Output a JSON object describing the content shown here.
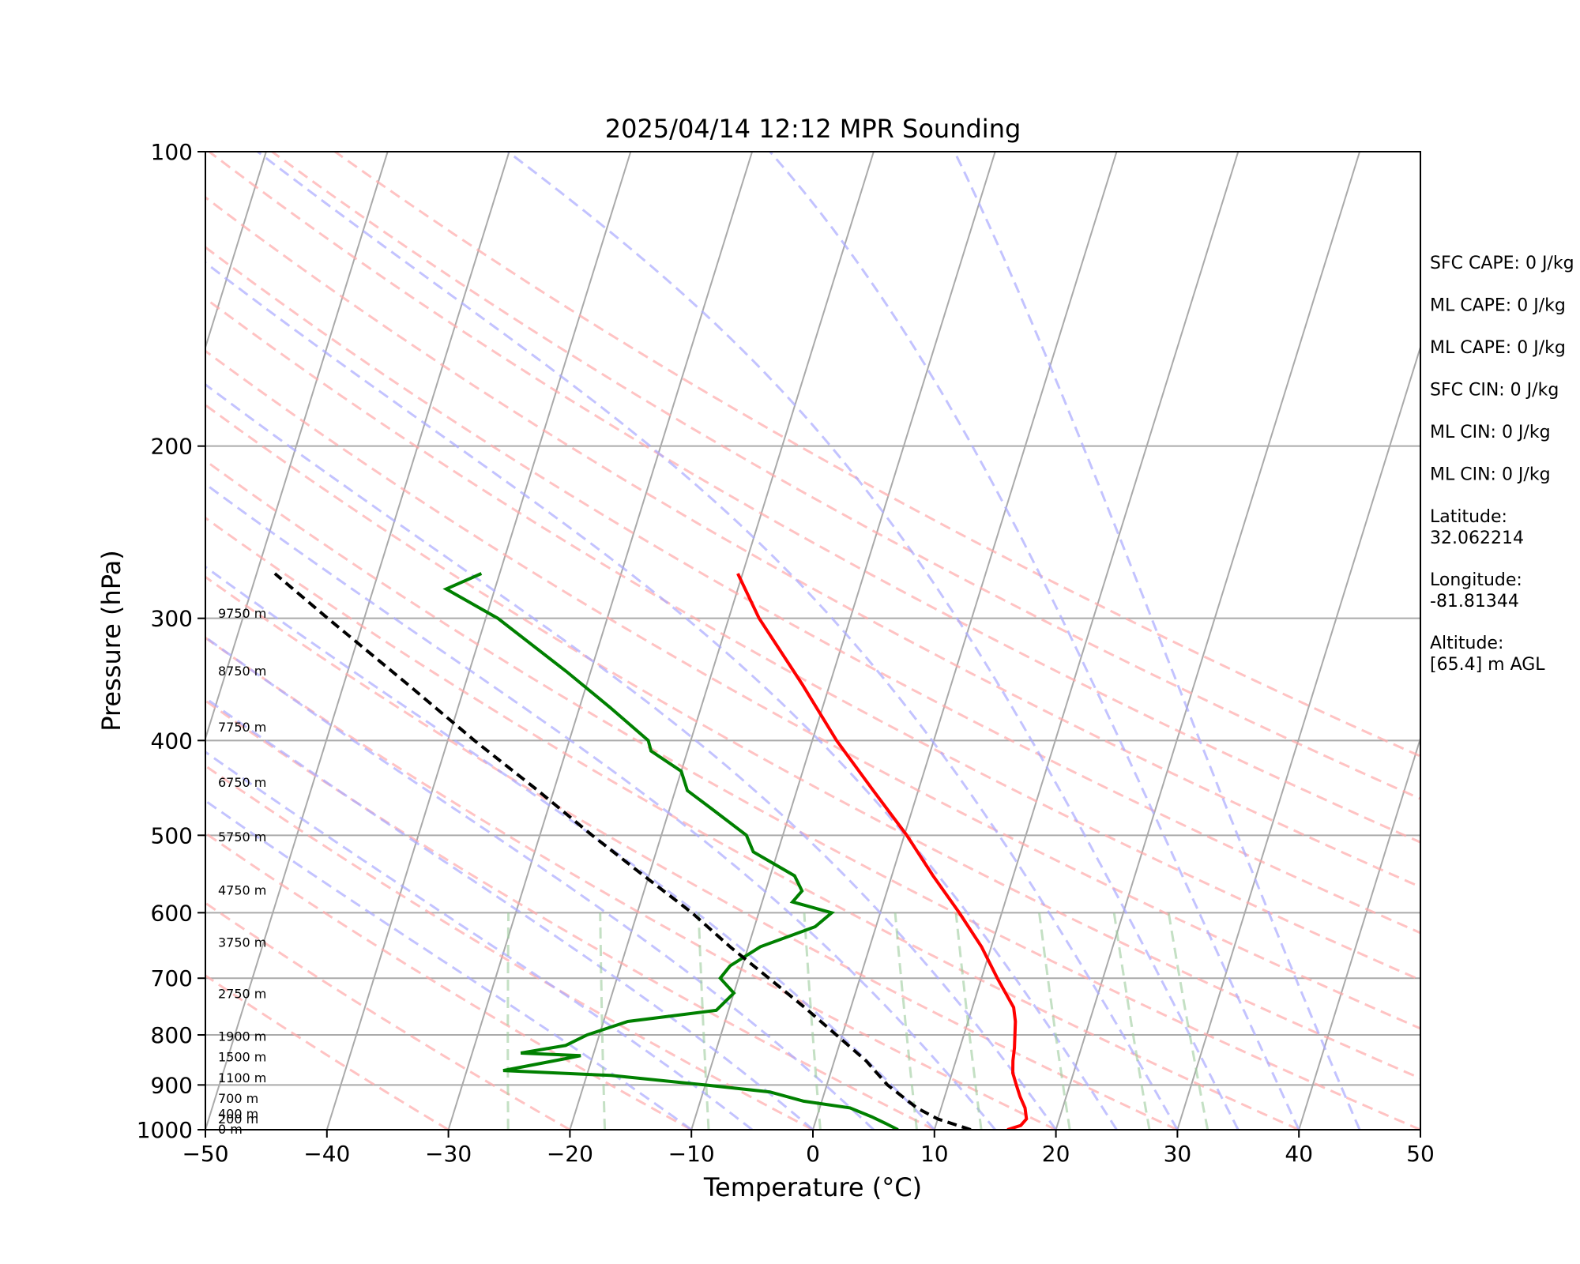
{
  "chart_data": {
    "type": "line",
    "title": "2025/04/14 12:12 MPR Sounding",
    "xlabel": "Temperature (°C)",
    "ylabel": "Pressure (hPa)",
    "xlim": [
      -50,
      50
    ],
    "ylim": [
      1000,
      100
    ],
    "y_scale": "log",
    "skew": "skew-T (isotherms slanted)",
    "x_ticks": [
      "−50",
      "−40",
      "−30",
      "−20",
      "−10",
      "0",
      "10",
      "20",
      "30",
      "40",
      "50"
    ],
    "y_ticks": [
      "100",
      "200",
      "300",
      "400",
      "500",
      "600",
      "700",
      "800",
      "900",
      "1000"
    ],
    "series": [
      {
        "role": "temperature",
        "color": "#ff0000",
        "points": [
          [
            1000,
            16.0
          ],
          [
            990,
            17.0
          ],
          [
            975,
            17.3
          ],
          [
            950,
            16.9
          ],
          [
            925,
            16.2
          ],
          [
            900,
            15.6
          ],
          [
            875,
            15.0
          ],
          [
            850,
            14.7
          ],
          [
            825,
            14.5
          ],
          [
            800,
            14.2
          ],
          [
            775,
            13.9
          ],
          [
            750,
            13.4
          ],
          [
            700,
            11.3
          ],
          [
            650,
            9.2
          ],
          [
            600,
            6.5
          ],
          [
            550,
            3.4
          ],
          [
            500,
            0.2
          ],
          [
            450,
            -3.7
          ],
          [
            400,
            -8.0
          ],
          [
            350,
            -12.3
          ],
          [
            300,
            -17.5
          ],
          [
            270,
            -20.4
          ]
        ]
      },
      {
        "role": "dewpoint",
        "color": "#008000",
        "points": [
          [
            1000,
            7.0
          ],
          [
            985,
            5.8
          ],
          [
            970,
            4.5
          ],
          [
            950,
            2.5
          ],
          [
            935,
            -1.5
          ],
          [
            915,
            -4.5
          ],
          [
            900,
            -10.0
          ],
          [
            880,
            -18.0
          ],
          [
            870,
            -27.0
          ],
          [
            860,
            -25.0
          ],
          [
            850,
            -23.0
          ],
          [
            840,
            -21.0
          ],
          [
            835,
            -26.0
          ],
          [
            820,
            -22.5
          ],
          [
            800,
            -21.0
          ],
          [
            775,
            -18.0
          ],
          [
            755,
            -11.0
          ],
          [
            725,
            -10.0
          ],
          [
            700,
            -11.5
          ],
          [
            680,
            -11.0
          ],
          [
            650,
            -9.0
          ],
          [
            620,
            -5.0
          ],
          [
            600,
            -4.0
          ],
          [
            585,
            -7.5
          ],
          [
            570,
            -7.0
          ],
          [
            550,
            -8.0
          ],
          [
            520,
            -12.0
          ],
          [
            500,
            -13.0
          ],
          [
            470,
            -16.5
          ],
          [
            450,
            -19.0
          ],
          [
            430,
            -20.0
          ],
          [
            410,
            -23.0
          ],
          [
            400,
            -23.5
          ],
          [
            370,
            -27.5
          ],
          [
            340,
            -32.0
          ],
          [
            300,
            -39.0
          ],
          [
            280,
            -44.0
          ],
          [
            270,
            -41.5
          ]
        ]
      },
      {
        "role": "parcel",
        "color": "#000000",
        "style": "dashed",
        "points": [
          [
            1000,
            13.0
          ],
          [
            975,
            10.0
          ],
          [
            950,
            8.0
          ],
          [
            900,
            5.0
          ],
          [
            850,
            2.6
          ],
          [
            800,
            -0.5
          ],
          [
            750,
            -3.8
          ],
          [
            700,
            -7.5
          ],
          [
            650,
            -11.5
          ],
          [
            600,
            -15.5
          ],
          [
            550,
            -20.4
          ],
          [
            500,
            -25.7
          ],
          [
            450,
            -31.3
          ],
          [
            400,
            -37.8
          ],
          [
            350,
            -44.8
          ],
          [
            300,
            -53.0
          ],
          [
            270,
            -58.5
          ]
        ]
      }
    ],
    "reference_lines": [
      {
        "name": "isotherms",
        "color": "#aaaaaa"
      },
      {
        "name": "isobars",
        "color": "#aaaaaa"
      },
      {
        "name": "dry adiabats",
        "color": "#ffaaaa",
        "style": "dashed"
      },
      {
        "name": "moist adiabats",
        "color": "#aaaaff",
        "style": "dashed"
      },
      {
        "name": "mixing ratio",
        "color": "#9ccc9c",
        "style": "dashed"
      }
    ],
    "height_labels": [
      {
        "p": 1000,
        "label": "0 m"
      },
      {
        "p": 976.3,
        "label": "200 m"
      },
      {
        "p": 964.6,
        "label": "400 m"
      },
      {
        "p": 930.4,
        "label": "700 m"
      },
      {
        "p": 886.3,
        "label": "1100 m"
      },
      {
        "p": 843.4,
        "label": "1500 m"
      },
      {
        "p": 803.5,
        "label": "1900 m"
      },
      {
        "p": 726.6,
        "label": "2750 m"
      },
      {
        "p": 644.3,
        "label": "3750 m"
      },
      {
        "p": 569.5,
        "label": "4750 m"
      },
      {
        "p": 502.3,
        "label": "5750 m"
      },
      {
        "p": 442.0,
        "label": "6750 m"
      },
      {
        "p": 388.0,
        "label": "7750 m"
      },
      {
        "p": 339.9,
        "label": "8750 m"
      },
      {
        "p": 296.9,
        "label": "9750 m"
      }
    ],
    "stats": [
      "SFC CAPE: 0 J/kg",
      "ML CAPE: 0 J/kg",
      "ML CAPE: 0 J/kg",
      "SFC CIN: 0 J/kg",
      "ML CIN: 0 J/kg",
      "ML CIN: 0 J/kg",
      [
        "Latitude:",
        "32.062214"
      ],
      [
        "Longitude:",
        "-81.81344"
      ],
      [
        "Altitude:",
        "[65.4] m AGL"
      ]
    ]
  }
}
